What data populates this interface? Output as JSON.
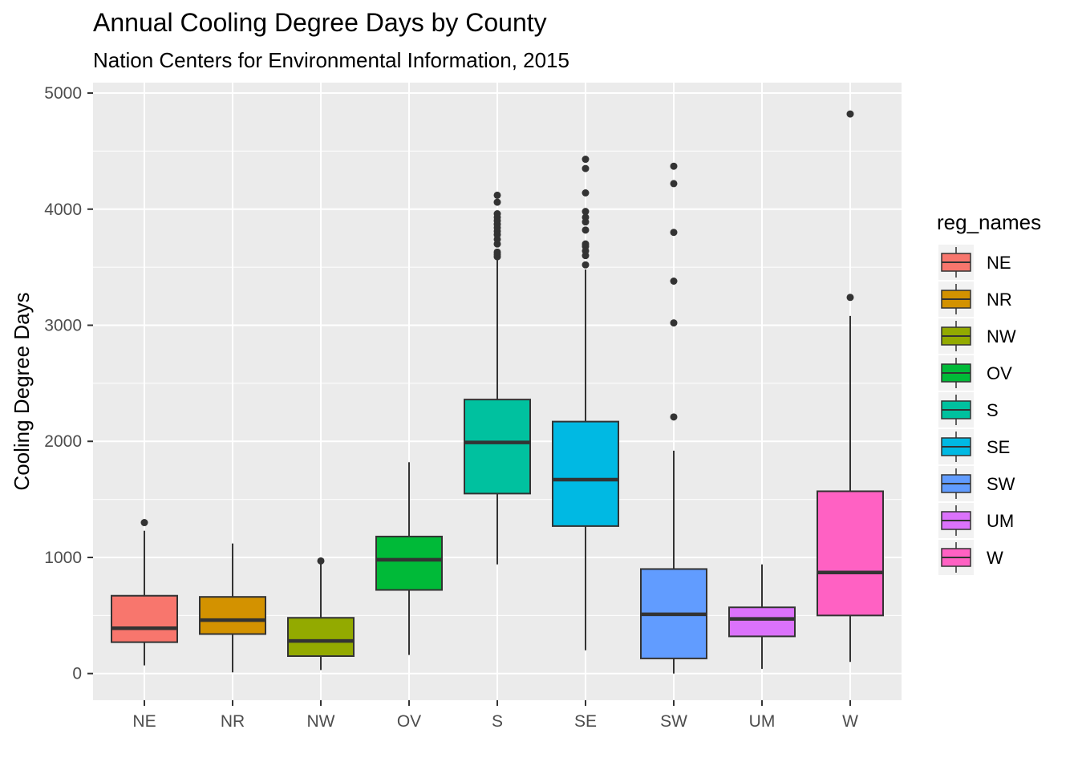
{
  "chart_data": {
    "type": "boxplot",
    "title": "Annual Cooling Degree Days by County",
    "subtitle": "Nation Centers for Environmental Information, 2015",
    "xlabel": "",
    "ylabel": "Cooling Degree Days",
    "ylim": [
      -230,
      5090
    ],
    "yticks": [
      0,
      1000,
      2000,
      3000,
      4000,
      5000
    ],
    "grid": true,
    "legend": {
      "title": "reg_names",
      "position": "right"
    },
    "categories": [
      "NE",
      "NR",
      "NW",
      "OV",
      "S",
      "SE",
      "SW",
      "UM",
      "W"
    ],
    "boxes": [
      {
        "name": "NE",
        "color": "#F8766D",
        "whisker_low": 70,
        "q1": 270,
        "median": 390,
        "q3": 670,
        "whisker_high": 1230,
        "outliers": [
          1300
        ]
      },
      {
        "name": "NR",
        "color": "#D39200",
        "whisker_low": 10,
        "q1": 340,
        "median": 460,
        "q3": 660,
        "whisker_high": 1120,
        "outliers": []
      },
      {
        "name": "NW",
        "color": "#93AA00",
        "whisker_low": 30,
        "q1": 150,
        "median": 280,
        "q3": 480,
        "whisker_high": 960,
        "outliers": [
          970
        ]
      },
      {
        "name": "OV",
        "color": "#00BA38",
        "whisker_low": 160,
        "q1": 720,
        "median": 980,
        "q3": 1180,
        "whisker_high": 1820,
        "outliers": []
      },
      {
        "name": "S",
        "color": "#00C19F",
        "whisker_low": 940,
        "q1": 1550,
        "median": 1990,
        "q3": 2360,
        "whisker_high": 3560,
        "outliers": [
          3590,
          3610,
          3630,
          3700,
          3740,
          3780,
          3810,
          3840,
          3870,
          3900,
          3930,
          3960,
          4060,
          4120
        ]
      },
      {
        "name": "SE",
        "color": "#00B9E3",
        "whisker_low": 200,
        "q1": 1270,
        "median": 1670,
        "q3": 2170,
        "whisker_high": 3480,
        "outliers": [
          3520,
          3600,
          3640,
          3680,
          3700,
          3820,
          3890,
          3930,
          3980,
          4140,
          4350,
          4430
        ]
      },
      {
        "name": "SW",
        "color": "#619CFF",
        "whisker_low": 0,
        "q1": 130,
        "median": 510,
        "q3": 900,
        "whisker_high": 1920,
        "outliers": [
          2210,
          3020,
          3380,
          3800,
          4220,
          4370
        ]
      },
      {
        "name": "UM",
        "color": "#DB72FB",
        "whisker_low": 40,
        "q1": 320,
        "median": 470,
        "q3": 570,
        "whisker_high": 940,
        "outliers": []
      },
      {
        "name": "W",
        "color": "#FF61C3",
        "whisker_low": 100,
        "q1": 500,
        "median": 870,
        "q3": 1570,
        "whisker_high": 3080,
        "outliers": [
          3240,
          4820
        ]
      }
    ]
  }
}
